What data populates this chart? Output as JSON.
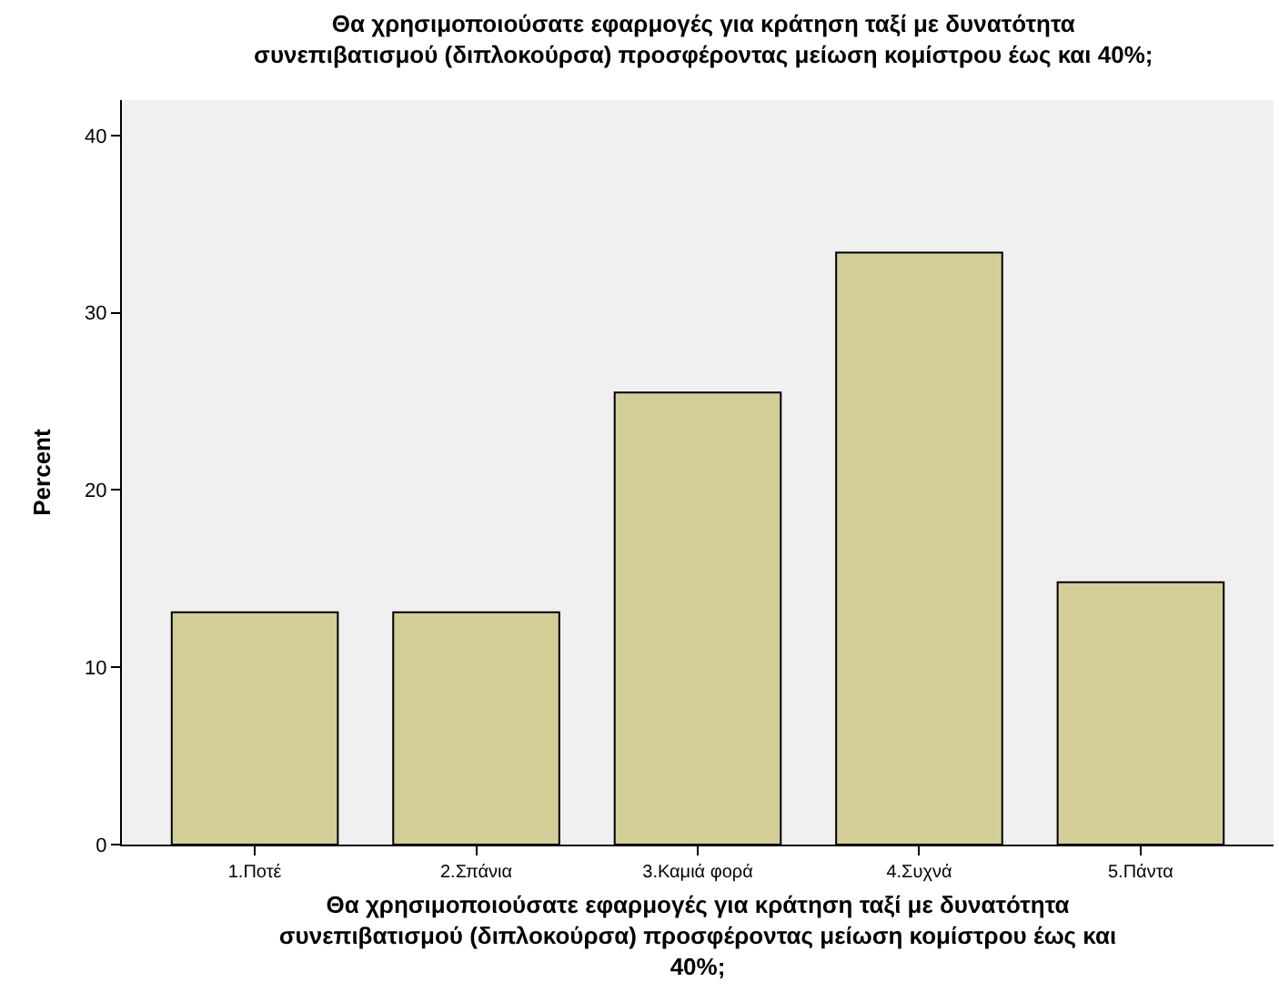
{
  "chart_data": {
    "type": "bar",
    "title": "Θα χρησιμοποιούσατε εφαρμογές για κράτηση ταξί με δυνατότητα συνεπιβατισμού (διπλοκούρσα) προσφέροντας μείωση κομίστρου έως και 40%;",
    "xlabel": "Θα χρησιμοποιούσατε εφαρμογές για κράτηση ταξί με δυνατότητα συνεπιβατισμού (διπλοκούρσα) προσφέροντας μείωση κομίστρου έως και 40%;",
    "ylabel": "Percent",
    "categories": [
      "1.Ποτέ",
      "2.Σπάνια",
      "3.Καμιά φορά",
      "4.Συχνά",
      "5.Πάντα"
    ],
    "values": [
      13.1,
      13.1,
      25.5,
      33.4,
      14.8
    ],
    "color": "#d3ce97",
    "ylim": [
      0,
      42
    ],
    "yticks": [
      0,
      10,
      20,
      30,
      40
    ],
    "grid": false,
    "legend": false
  }
}
